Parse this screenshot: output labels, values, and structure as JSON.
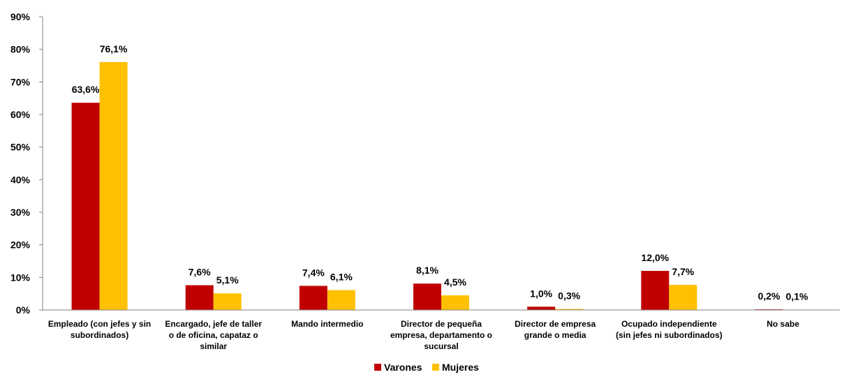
{
  "chart_data": {
    "type": "bar",
    "categories": [
      [
        "Empleado (con jefes y sin",
        "subordinados)"
      ],
      [
        "Encargado, jefe de taller",
        "o de oficina, capataz o",
        "similar"
      ],
      [
        "Mando intermedio"
      ],
      [
        "Director de pequeña",
        "empresa, departamento o",
        "sucursal"
      ],
      [
        "Director de empresa",
        "grande o media"
      ],
      [
        "Ocupado independiente",
        "(sin jefes ni subordinados)"
      ],
      [
        "No sabe"
      ]
    ],
    "series": [
      {
        "name": "Varones",
        "color": "#C00000",
        "values": [
          63.6,
          7.6,
          7.4,
          8.1,
          1.0,
          12.0,
          0.2
        ],
        "labels": [
          "63,6%",
          "7,6%",
          "7,4%",
          "8,1%",
          "1,0%",
          "12,0%",
          "0,2%"
        ]
      },
      {
        "name": "Mujeres",
        "color": "#FFC000",
        "values": [
          76.1,
          5.1,
          6.1,
          4.5,
          0.3,
          7.7,
          0.1
        ],
        "labels": [
          "76,1%",
          "5,1%",
          "6,1%",
          "4,5%",
          "0,3%",
          "7,7%",
          "0,1%"
        ]
      }
    ],
    "y_ticks": [
      "0%",
      "10%",
      "20%",
      "30%",
      "40%",
      "50%",
      "60%",
      "70%",
      "80%",
      "90%"
    ],
    "ylim": [
      0,
      90
    ],
    "grid": false,
    "legend_position": "bottom"
  }
}
